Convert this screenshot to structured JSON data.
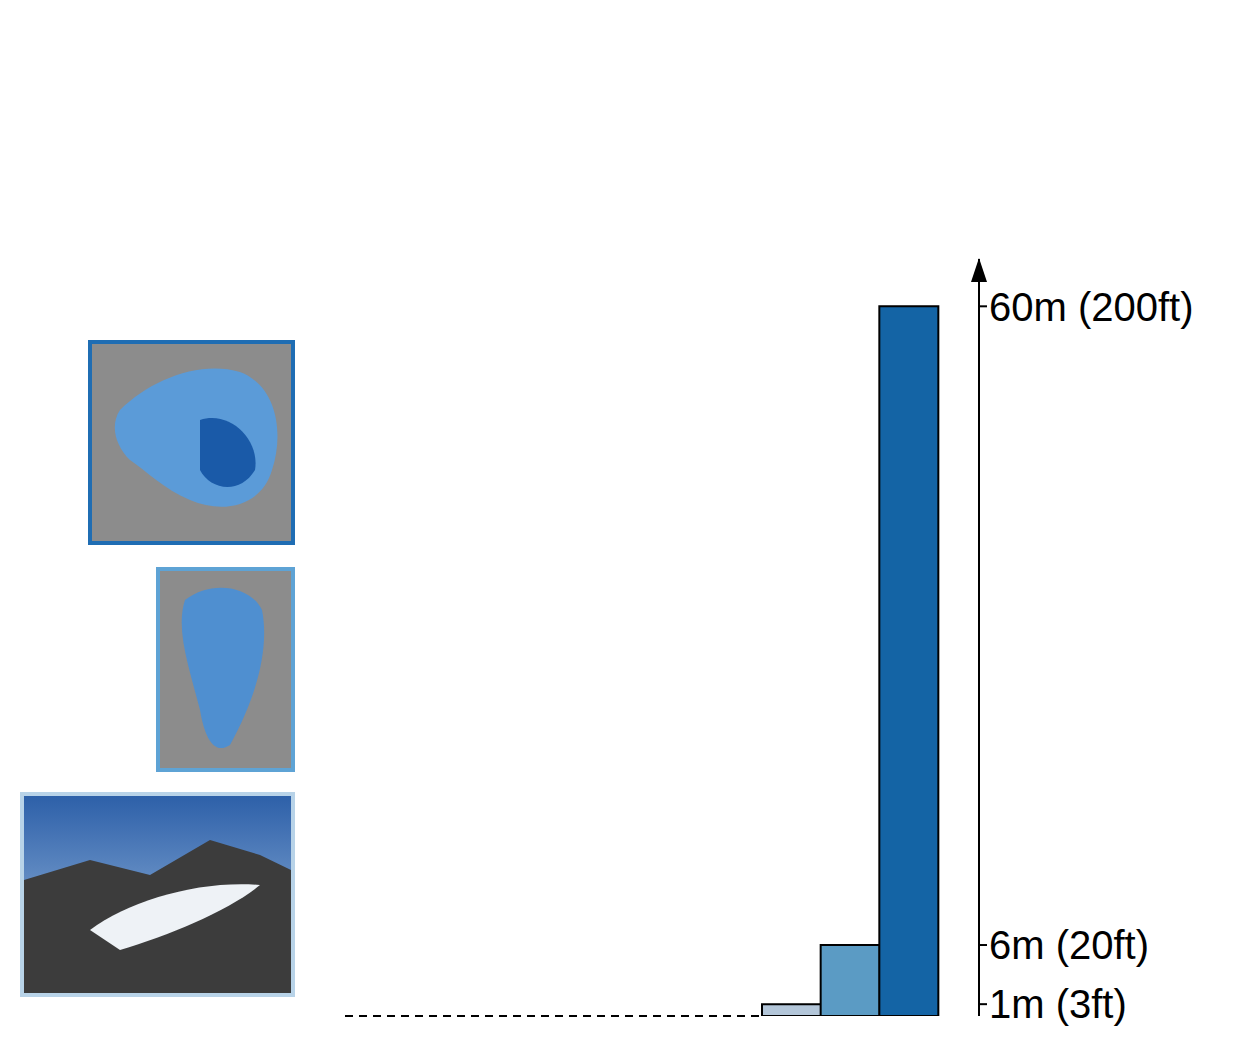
{
  "chart_data": {
    "type": "bar",
    "categories": [
      null,
      null,
      null
    ],
    "values": [
      1,
      6,
      60
    ],
    "colors": [
      "#b3c6d9",
      "#5b9bc4",
      "#1464a5"
    ],
    "ylim": [
      0,
      64
    ],
    "yticks": [
      {
        "value": 1,
        "label": "1m (3ft)"
      },
      {
        "value": 6,
        "label": "6m (20ft)"
      },
      {
        "value": 60,
        "label": "60m (200ft)"
      }
    ],
    "tick_labels": "y"
  }
}
